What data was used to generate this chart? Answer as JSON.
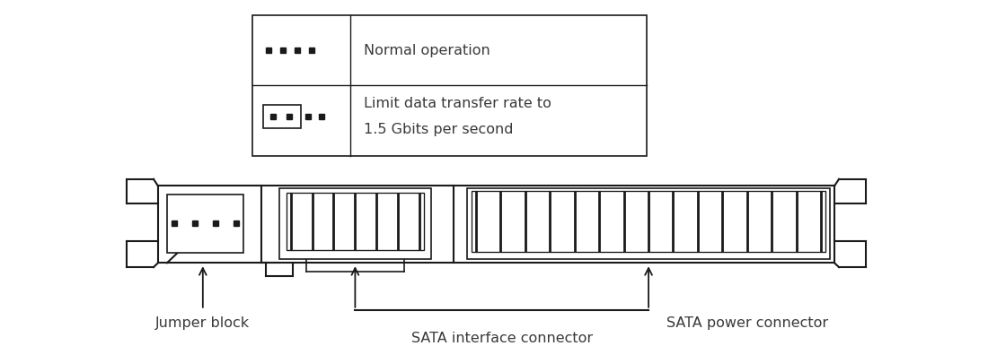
{
  "bg_color": "#ffffff",
  "line_color": "#1a1a1a",
  "text_color": "#3a3a3a",
  "row1_text": "Normal operation",
  "row2_line1": "Limit data transfer rate to",
  "row2_line2": "1.5 Gbits per second",
  "label_jumper": "Jumper block",
  "label_interface": "SATA interface connector",
  "label_power": "SATA power connector",
  "font_size_legend": 11.5,
  "font_size_label": 11.5
}
